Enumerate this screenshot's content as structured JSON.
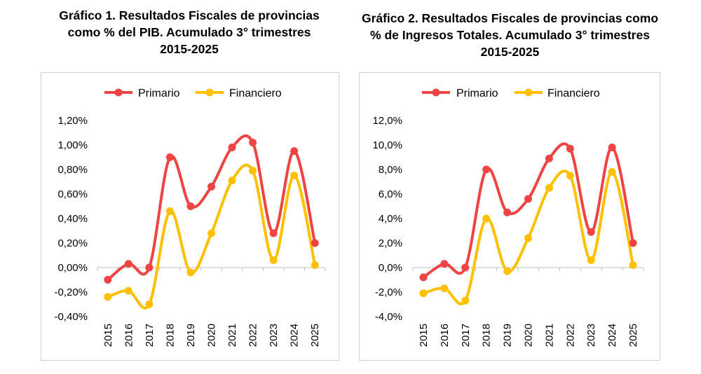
{
  "charts": [
    {
      "title_lines": [
        "Gráfico 1. Resultados Fiscales de provincias",
        "como % del PIB. Acumulado 3° trimestres",
        "2015-2025"
      ]
    },
    {
      "title_lines": [
        "Gráfico 2. Resultados Fiscales de provincias como",
        "% de Ingresos Totales. Acumulado 3° trimestres",
        "2015-2025"
      ]
    }
  ],
  "colors": {
    "primario": "#ee4444",
    "financiero": "#ffc000"
  },
  "chart_data": [
    {
      "type": "line",
      "title": "Gráfico 1. Resultados Fiscales de provincias como % del PIB. Acumulado 3° trimestres 2015-2025",
      "x": [
        "2015",
        "2016",
        "2017",
        "2018",
        "2019",
        "2020",
        "2021",
        "2022",
        "2023",
        "2024",
        "2025"
      ],
      "series": [
        {
          "name": "Primario",
          "values": [
            -0.1,
            0.03,
            0.0,
            0.9,
            0.5,
            0.66,
            0.98,
            1.02,
            0.28,
            0.95,
            0.2
          ]
        },
        {
          "name": "Financiero",
          "values": [
            -0.24,
            -0.19,
            -0.3,
            0.46,
            -0.04,
            0.28,
            0.71,
            0.79,
            0.06,
            0.75,
            0.02
          ]
        }
      ],
      "y_ticks": [
        "1,20%",
        "1,00%",
        "0,80%",
        "0,60%",
        "0,40%",
        "0,20%",
        "0,00%",
        "-0,20%",
        "-0,40%"
      ],
      "ylim": [
        -0.4,
        1.2
      ],
      "legend": "top"
    },
    {
      "type": "line",
      "title": "Gráfico 2. Resultados Fiscales de provincias como % de Ingresos Totales. Acumulado 3° trimestres 2015-2025",
      "x": [
        "2015",
        "2016",
        "2017",
        "2018",
        "2019",
        "2020",
        "2021",
        "2022",
        "2023",
        "2024",
        "2025"
      ],
      "series": [
        {
          "name": "Primario",
          "values": [
            -0.8,
            0.3,
            0.0,
            8.0,
            4.5,
            5.6,
            8.9,
            9.7,
            2.9,
            9.8,
            2.0
          ]
        },
        {
          "name": "Financiero",
          "values": [
            -2.1,
            -1.7,
            -2.7,
            4.0,
            -0.3,
            2.4,
            6.5,
            7.5,
            0.6,
            7.8,
            0.2
          ]
        }
      ],
      "y_ticks": [
        "12,0%",
        "10,0%",
        "8,0%",
        "6,0%",
        "4,0%",
        "2,0%",
        "0,0%",
        "-2,0%",
        "-4,0%"
      ],
      "ylim": [
        -4.0,
        12.0
      ],
      "legend": "top"
    }
  ]
}
